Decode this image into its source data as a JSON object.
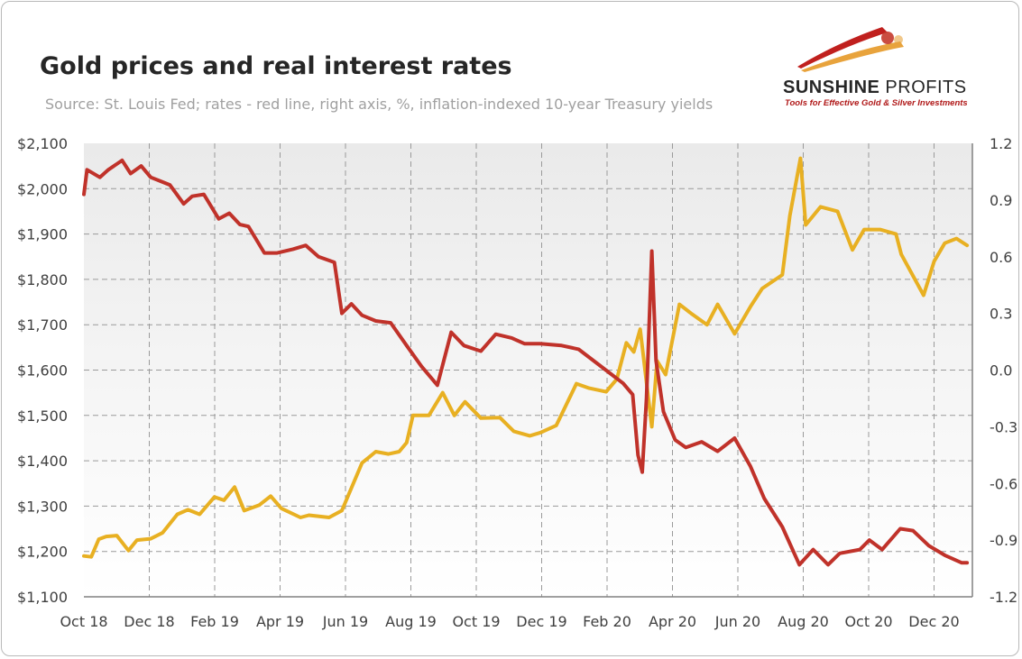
{
  "header": {
    "title": "Gold prices and real interest rates",
    "subtitle": "Source: St. Louis Fed; rates - red line, right axis, %, inflation-indexed 10-year Treasury yields"
  },
  "logo": {
    "word_bold": "SUNSHINE",
    "word_light": " PROFITS",
    "tagline": "Tools for Effective Gold & Silver Investments",
    "colors": {
      "red": "#c0201e",
      "gold": "#e8a33c"
    }
  },
  "chart_data": {
    "type": "line",
    "title": "Gold prices and real interest rates",
    "x_ticks": [
      "Oct 18",
      "Dec 18",
      "Feb 19",
      "Apr 19",
      "Jun 19",
      "Aug 19",
      "Oct 19",
      "Dec 19",
      "Feb 20",
      "Apr 20",
      "Jun 20",
      "Aug 20",
      "Oct 20",
      "Dec 20"
    ],
    "x_range": [
      "2018-10-01",
      "2021-01-15"
    ],
    "y_left": {
      "ticks": [
        "$1,100",
        "$1,200",
        "$1,300",
        "$1,400",
        "$1,500",
        "$1,600",
        "$1,700",
        "$1,800",
        "$1,900",
        "$2,000",
        "$2,100"
      ],
      "range": [
        1100,
        2100
      ]
    },
    "y_right": {
      "ticks": [
        "-1.2",
        "-0.9",
        "-0.6",
        "-0.3",
        "0.0",
        "0.3",
        "0.6",
        "0.9",
        "1.2"
      ],
      "range": [
        -1.2,
        1.2
      ]
    },
    "grid": true,
    "series": [
      {
        "axis": "left",
        "color": "#e8b022",
        "points": [
          [
            "2018-10-01",
            1190
          ],
          [
            "2018-10-08",
            1188
          ],
          [
            "2018-10-15",
            1227
          ],
          [
            "2018-10-22",
            1233
          ],
          [
            "2018-11-01",
            1235
          ],
          [
            "2018-11-12",
            1202
          ],
          [
            "2018-11-20",
            1225
          ],
          [
            "2018-12-03",
            1228
          ],
          [
            "2018-12-14",
            1241
          ],
          [
            "2018-12-28",
            1282
          ],
          [
            "2019-01-07",
            1292
          ],
          [
            "2019-01-18",
            1282
          ],
          [
            "2019-02-01",
            1320
          ],
          [
            "2019-02-10",
            1313
          ],
          [
            "2019-02-20",
            1342
          ],
          [
            "2019-03-01",
            1290
          ],
          [
            "2019-03-15",
            1302
          ],
          [
            "2019-03-26",
            1322
          ],
          [
            "2019-04-05",
            1295
          ],
          [
            "2019-04-23",
            1275
          ],
          [
            "2019-05-01",
            1280
          ],
          [
            "2019-05-20",
            1275
          ],
          [
            "2019-06-01",
            1290
          ],
          [
            "2019-06-20",
            1395
          ],
          [
            "2019-07-03",
            1420
          ],
          [
            "2019-07-15",
            1415
          ],
          [
            "2019-07-25",
            1420
          ],
          [
            "2019-08-01",
            1440
          ],
          [
            "2019-08-07",
            1500
          ],
          [
            "2019-08-22",
            1500
          ],
          [
            "2019-09-04",
            1550
          ],
          [
            "2019-09-15",
            1500
          ],
          [
            "2019-09-25",
            1530
          ],
          [
            "2019-10-10",
            1494
          ],
          [
            "2019-10-28",
            1495
          ],
          [
            "2019-11-10",
            1465
          ],
          [
            "2019-11-25",
            1455
          ],
          [
            "2019-12-05",
            1462
          ],
          [
            "2019-12-20",
            1478
          ],
          [
            "2020-01-08",
            1570
          ],
          [
            "2020-01-20",
            1560
          ],
          [
            "2020-02-05",
            1552
          ],
          [
            "2020-02-15",
            1580
          ],
          [
            "2020-02-24",
            1660
          ],
          [
            "2020-03-02",
            1640
          ],
          [
            "2020-03-08",
            1690
          ],
          [
            "2020-03-19",
            1475
          ],
          [
            "2020-03-24",
            1620
          ],
          [
            "2020-04-01",
            1590
          ],
          [
            "2020-04-14",
            1745
          ],
          [
            "2020-04-25",
            1725
          ],
          [
            "2020-05-10",
            1700
          ],
          [
            "2020-05-20",
            1745
          ],
          [
            "2020-06-05",
            1680
          ],
          [
            "2020-06-20",
            1740
          ],
          [
            "2020-07-01",
            1780
          ],
          [
            "2020-07-20",
            1810
          ],
          [
            "2020-07-27",
            1940
          ],
          [
            "2020-08-06",
            2067
          ],
          [
            "2020-08-11",
            1920
          ],
          [
            "2020-08-25",
            1960
          ],
          [
            "2020-09-10",
            1950
          ],
          [
            "2020-09-24",
            1865
          ],
          [
            "2020-10-05",
            1910
          ],
          [
            "2020-10-20",
            1910
          ],
          [
            "2020-11-04",
            1900
          ],
          [
            "2020-11-09",
            1855
          ],
          [
            "2020-11-30",
            1765
          ],
          [
            "2020-12-10",
            1840
          ],
          [
            "2020-12-20",
            1880
          ],
          [
            "2020-12-31",
            1890
          ],
          [
            "2021-01-10",
            1875
          ]
        ]
      },
      {
        "axis": "right",
        "color": "#c0322a",
        "points": [
          [
            "2018-10-01",
            0.93
          ],
          [
            "2018-10-04",
            1.06
          ],
          [
            "2018-10-16",
            1.02
          ],
          [
            "2018-10-24",
            1.06
          ],
          [
            "2018-11-06",
            1.11
          ],
          [
            "2018-11-14",
            1.04
          ],
          [
            "2018-11-24",
            1.08
          ],
          [
            "2018-12-03",
            1.02
          ],
          [
            "2018-12-12",
            1.0
          ],
          [
            "2018-12-21",
            0.98
          ],
          [
            "2019-01-03",
            0.88
          ],
          [
            "2019-01-11",
            0.92
          ],
          [
            "2019-01-22",
            0.93
          ],
          [
            "2019-02-05",
            0.8
          ],
          [
            "2019-02-15",
            0.83
          ],
          [
            "2019-02-25",
            0.77
          ],
          [
            "2019-03-05",
            0.76
          ],
          [
            "2019-03-20",
            0.62
          ],
          [
            "2019-04-01",
            0.62
          ],
          [
            "2019-04-16",
            0.64
          ],
          [
            "2019-04-28",
            0.66
          ],
          [
            "2019-05-10",
            0.6
          ],
          [
            "2019-05-25",
            0.57
          ],
          [
            "2019-06-01",
            0.3
          ],
          [
            "2019-06-10",
            0.35
          ],
          [
            "2019-06-20",
            0.29
          ],
          [
            "2019-07-03",
            0.26
          ],
          [
            "2019-07-17",
            0.25
          ],
          [
            "2019-08-01",
            0.13
          ],
          [
            "2019-08-15",
            0.02
          ],
          [
            "2019-08-30",
            -0.08
          ],
          [
            "2019-09-12",
            0.2
          ],
          [
            "2019-09-24",
            0.13
          ],
          [
            "2019-10-10",
            0.1
          ],
          [
            "2019-10-24",
            0.19
          ],
          [
            "2019-11-08",
            0.17
          ],
          [
            "2019-11-20",
            0.14
          ],
          [
            "2019-12-05",
            0.14
          ],
          [
            "2019-12-25",
            0.13
          ],
          [
            "2020-01-10",
            0.11
          ],
          [
            "2020-01-24",
            0.05
          ],
          [
            "2020-02-07",
            -0.01
          ],
          [
            "2020-02-21",
            -0.07
          ],
          [
            "2020-03-01",
            -0.13
          ],
          [
            "2020-03-06",
            -0.45
          ],
          [
            "2020-03-10",
            -0.54
          ],
          [
            "2020-03-14",
            -0.15
          ],
          [
            "2020-03-19",
            0.63
          ],
          [
            "2020-03-23",
            0.05
          ],
          [
            "2020-03-30",
            -0.22
          ],
          [
            "2020-04-10",
            -0.37
          ],
          [
            "2020-04-20",
            -0.41
          ],
          [
            "2020-05-05",
            -0.38
          ],
          [
            "2020-05-20",
            -0.43
          ],
          [
            "2020-06-05",
            -0.36
          ],
          [
            "2020-06-20",
            -0.51
          ],
          [
            "2020-07-03",
            -0.68
          ],
          [
            "2020-07-20",
            -0.83
          ],
          [
            "2020-08-05",
            -1.03
          ],
          [
            "2020-08-18",
            -0.95
          ],
          [
            "2020-09-01",
            -1.03
          ],
          [
            "2020-09-12",
            -0.97
          ],
          [
            "2020-10-01",
            -0.95
          ],
          [
            "2020-10-10",
            -0.9
          ],
          [
            "2020-10-22",
            -0.95
          ],
          [
            "2020-11-08",
            -0.84
          ],
          [
            "2020-11-20",
            -0.85
          ],
          [
            "2020-12-05",
            -0.93
          ],
          [
            "2020-12-20",
            -0.98
          ],
          [
            "2021-01-05",
            -1.02
          ],
          [
            "2021-01-10",
            -1.02
          ]
        ]
      }
    ]
  }
}
